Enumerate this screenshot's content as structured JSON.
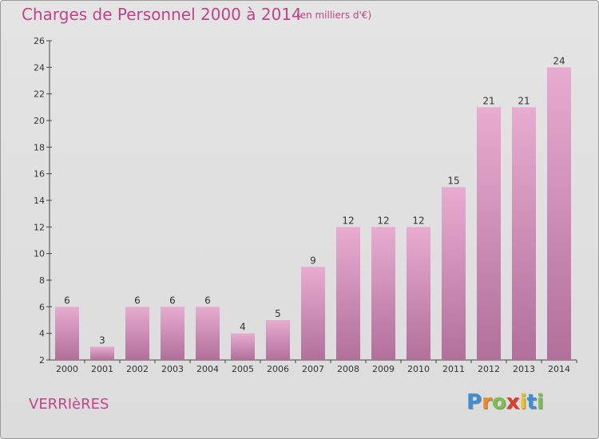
{
  "header": {
    "title": "Charges de Personnel 2000 à 2014",
    "subtitle": "(en milliers d'€)"
  },
  "footer": {
    "commune": "VERRIèRES",
    "logo_letters": [
      {
        "ch": "P",
        "color": "#3a8fd6"
      },
      {
        "ch": "r",
        "color": "#f08a1c"
      },
      {
        "ch": "o",
        "color": "#7cc04a"
      },
      {
        "ch": "x",
        "color": "#e23b2e"
      },
      {
        "ch": "i",
        "color": "#f0c419"
      },
      {
        "ch": "t",
        "color": "#3a8fd6"
      },
      {
        "ch": "i",
        "color": "#7cc04a"
      }
    ]
  },
  "colors": {
    "bar_top": "#e8acd0",
    "bar_bottom": "#b0709a",
    "accent": "#c0448a"
  },
  "chart_data": {
    "type": "bar",
    "title": "Charges de Personnel 2000 à 2014",
    "subtitle": "(en milliers d'€)",
    "categories": [
      "2000",
      "2001",
      "2002",
      "2003",
      "2004",
      "2005",
      "2006",
      "2007",
      "2008",
      "2009",
      "2010",
      "2011",
      "2012",
      "2013",
      "2014"
    ],
    "values": [
      6,
      3,
      6,
      6,
      6,
      4,
      5,
      9,
      12,
      12,
      12,
      15,
      21,
      21,
      24
    ],
    "ylim": [
      2,
      26
    ],
    "yticks": [
      2,
      4,
      6,
      8,
      10,
      12,
      14,
      16,
      18,
      20,
      22,
      24,
      26
    ],
    "grid": false,
    "xlabel": "",
    "ylabel": ""
  }
}
